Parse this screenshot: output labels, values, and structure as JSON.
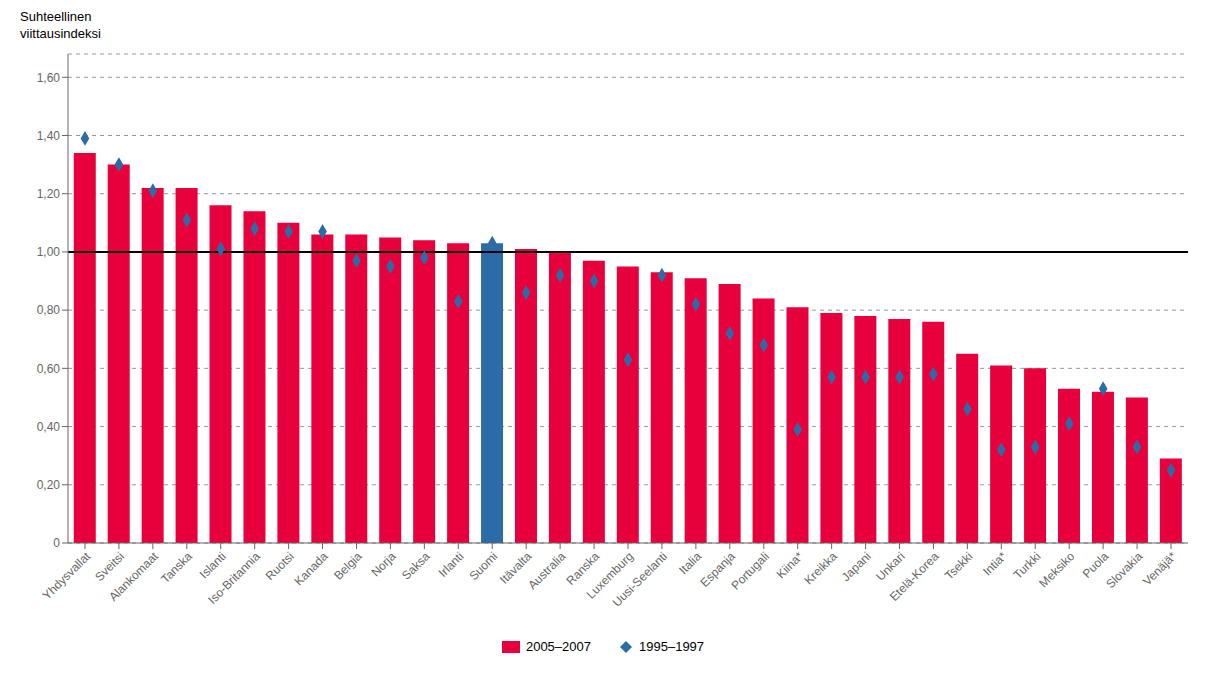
{
  "chart_data": {
    "type": "bar",
    "ylabel": "Suhteellinen\nviittausindeksi",
    "categories": [
      "Yhdysvallat",
      "Sveitsi",
      "Alankomaat",
      "Tanska",
      "Islanti",
      "Iso-Britannia",
      "Ruotsi",
      "Kanada",
      "Belgia",
      "Norja",
      "Saksa",
      "Irlanti",
      "Suomi",
      "Itävalta",
      "Australia",
      "Ranska",
      "Luxemburg",
      "Uusi-Seelanti",
      "Italia",
      "Espanja",
      "Portugali",
      "Kiina*",
      "Kreikka",
      "Japani",
      "Unkari",
      "Etelä-Korea",
      "Tsekki",
      "Intia*",
      "Turkki",
      "Meksiko",
      "Puola",
      "Slovakia",
      "Venäjä*"
    ],
    "series": [
      {
        "name": "2005–2007",
        "type": "bar",
        "color": "#E8003D",
        "colors": [
          "#E8003D",
          "#E8003D",
          "#E8003D",
          "#E8003D",
          "#E8003D",
          "#E8003D",
          "#E8003D",
          "#E8003D",
          "#E8003D",
          "#E8003D",
          "#E8003D",
          "#E8003D",
          "#2B6CA8",
          "#E8003D",
          "#E8003D",
          "#E8003D",
          "#E8003D",
          "#E8003D",
          "#E8003D",
          "#E8003D",
          "#E8003D",
          "#E8003D",
          "#E8003D",
          "#E8003D",
          "#E8003D",
          "#E8003D",
          "#E8003D",
          "#E8003D",
          "#E8003D",
          "#E8003D",
          "#E8003D",
          "#E8003D",
          "#E8003D"
        ],
        "values": [
          1.34,
          1.3,
          1.22,
          1.22,
          1.16,
          1.14,
          1.1,
          1.06,
          1.06,
          1.05,
          1.04,
          1.03,
          1.03,
          1.01,
          1.0,
          0.97,
          0.95,
          0.93,
          0.91,
          0.89,
          0.84,
          0.81,
          0.79,
          0.78,
          0.77,
          0.76,
          0.65,
          0.61,
          0.6,
          0.53,
          0.52,
          0.5,
          0.29
        ]
      },
      {
        "name": "1995–1997",
        "type": "scatter",
        "marker": "diamond",
        "color": "#2B6CA8",
        "values": [
          1.39,
          1.3,
          1.21,
          1.11,
          1.01,
          1.08,
          1.07,
          1.07,
          0.97,
          0.95,
          0.98,
          0.83,
          1.03,
          0.86,
          0.92,
          0.9,
          0.63,
          0.92,
          0.82,
          0.72,
          0.68,
          0.39,
          0.57,
          0.57,
          0.57,
          0.58,
          0.46,
          0.32,
          0.33,
          0.41,
          0.53,
          0.33,
          0.25
        ]
      }
    ],
    "reference_lines": [
      {
        "y": 1.0,
        "color": "#000000"
      }
    ],
    "ylim": [
      0,
      1.68
    ],
    "yticks": [
      0,
      {
        "value": 0.2,
        "label": "0,20"
      },
      {
        "value": 0.4,
        "label": "0,40"
      },
      {
        "value": 0.6,
        "label": "0,60"
      },
      {
        "value": 0.8,
        "label": "0,80"
      },
      {
        "value": 1.0,
        "label": "1,00"
      },
      {
        "value": 1.2,
        "label": "1,20"
      },
      {
        "value": 1.4,
        "label": "1,40"
      },
      {
        "value": 1.6,
        "label": "1,60"
      }
    ],
    "grid": true,
    "legend": "bottom"
  }
}
